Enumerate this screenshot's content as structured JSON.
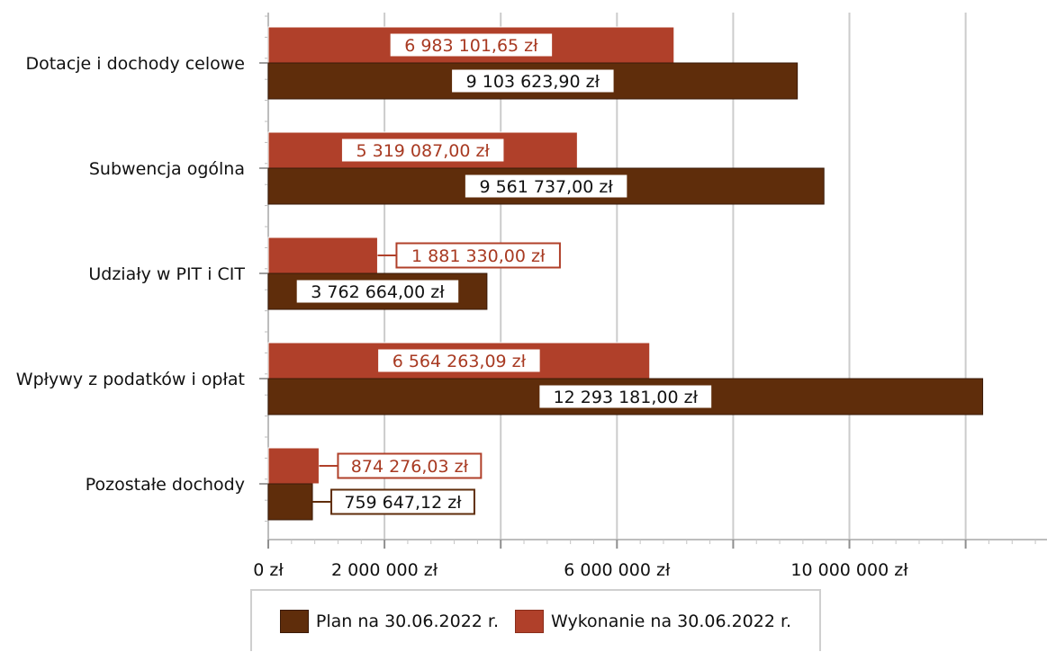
{
  "chart_data": {
    "type": "bar",
    "orientation": "horizontal",
    "categories": [
      "Dotacje i dochody celowe",
      "Subwencja ogólna",
      "Udziały w PIT i CIT",
      "Wpływy z podatków i opłat",
      "Pozostałe dochody"
    ],
    "series": [
      {
        "name": "Wykonanie na 30.06.2022 r.",
        "color": "#b0402a",
        "values": [
          6983101.65,
          5319087.0,
          1881330.0,
          6564263.09,
          874276.03
        ],
        "labels": [
          "6 983 101,65 zł",
          "5 319 087,00 zł",
          "1 881 330,00 zł",
          "6 564 263,09 zł",
          "874 276,03 zł"
        ]
      },
      {
        "name": "Plan na 30.06.2022 r.",
        "color": "#5f2d0b",
        "values": [
          9103623.9,
          9561737.0,
          3762664.0,
          12293181.0,
          759647.12
        ],
        "labels": [
          "9 103 623,90 zł",
          "9 561 737,00 zł",
          "3 762 664,00 zł",
          "12 293 181,00 zł",
          "759 647,12 zł"
        ]
      }
    ],
    "xlim": [
      0,
      13400000
    ],
    "x_ticks": [
      0,
      2000000,
      6000000,
      10000000
    ],
    "x_tick_labels": [
      "0 zł",
      "2 000 000 zł",
      "6 000 000 zł",
      "10 000 000 zł"
    ],
    "gridlines": [
      0,
      2000000,
      4000000,
      6000000,
      8000000,
      10000000,
      12000000
    ],
    "grid": true,
    "legend_position": "bottom",
    "legend": [
      {
        "label": "Plan na 30.06.2022 r.",
        "color": "#5f2d0b"
      },
      {
        "label": "Wykonanie na 30.06.2022 r.",
        "color": "#b0402a"
      }
    ],
    "title": "",
    "xlabel": "",
    "ylabel": ""
  }
}
